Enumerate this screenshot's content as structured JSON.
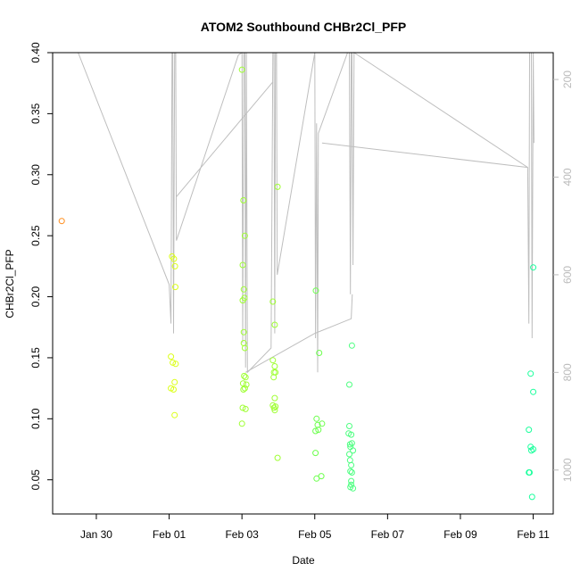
{
  "chart_data": {
    "type": "scatter",
    "title": "ATOM2 Southbound CHBr2Cl_PFP",
    "xlabel": "Date",
    "ylabel": "CHBr2Cl_PFP",
    "xlim": [
      -1.2,
      12.55
    ],
    "ylim": [
      0.022,
      0.4
    ],
    "yticks": [
      0.05,
      0.1,
      0.15,
      0.2,
      0.25,
      0.3,
      0.35,
      0.4
    ],
    "ytick_labels": [
      "0.05",
      "0.10",
      "0.15",
      "0.20",
      "0.25",
      "0.30",
      "0.35",
      "0.40"
    ],
    "xticks": [
      0,
      2,
      4,
      6,
      8,
      10,
      12
    ],
    "xtick_labels": [
      "Jan 30",
      "Feb 01",
      "Feb 03",
      "Feb 05",
      "Feb 07",
      "Feb 09",
      "Feb 11"
    ],
    "y2lim": [
      1090,
      145
    ],
    "y2ticks": [
      200,
      400,
      600,
      800,
      1000
    ],
    "y2tick_labels": [
      "200",
      "400",
      "600",
      "800",
      "1000"
    ],
    "altitude_color": "#bebebe",
    "points": [
      {
        "x": -0.95,
        "y": 0.262,
        "color": "#ff8c1a"
      },
      {
        "x": 2.05,
        "y": 0.151,
        "color": "#dcff1a"
      },
      {
        "x": 2.1,
        "y": 0.146,
        "color": "#dcff1a"
      },
      {
        "x": 2.18,
        "y": 0.145,
        "color": "#dcff1a"
      },
      {
        "x": 2.05,
        "y": 0.125,
        "color": "#dcff1a"
      },
      {
        "x": 2.12,
        "y": 0.124,
        "color": "#dcff1a"
      },
      {
        "x": 2.15,
        "y": 0.13,
        "color": "#dcff1a"
      },
      {
        "x": 2.15,
        "y": 0.103,
        "color": "#dcff1a"
      },
      {
        "x": 2.08,
        "y": 0.233,
        "color": "#dcff1a"
      },
      {
        "x": 2.13,
        "y": 0.231,
        "color": "#dcff1a"
      },
      {
        "x": 2.16,
        "y": 0.225,
        "color": "#dcff1a"
      },
      {
        "x": 2.17,
        "y": 0.208,
        "color": "#dcff1a"
      },
      {
        "x": 4.0,
        "y": 0.386,
        "color": "#9fff33"
      },
      {
        "x": 4.04,
        "y": 0.279,
        "color": "#9fff33"
      },
      {
        "x": 4.08,
        "y": 0.25,
        "color": "#9fff33"
      },
      {
        "x": 4.02,
        "y": 0.226,
        "color": "#9fff33"
      },
      {
        "x": 4.05,
        "y": 0.206,
        "color": "#9fff33"
      },
      {
        "x": 4.02,
        "y": 0.197,
        "color": "#9fff33"
      },
      {
        "x": 4.07,
        "y": 0.199,
        "color": "#9fff33"
      },
      {
        "x": 4.05,
        "y": 0.171,
        "color": "#9fff33"
      },
      {
        "x": 4.05,
        "y": 0.162,
        "color": "#9fff33"
      },
      {
        "x": 4.08,
        "y": 0.158,
        "color": "#9fff33"
      },
      {
        "x": 4.06,
        "y": 0.135,
        "color": "#9fff33"
      },
      {
        "x": 4.1,
        "y": 0.134,
        "color": "#9fff33"
      },
      {
        "x": 4.03,
        "y": 0.129,
        "color": "#9fff33"
      },
      {
        "x": 4.12,
        "y": 0.128,
        "color": "#9fff33"
      },
      {
        "x": 4.04,
        "y": 0.124,
        "color": "#9fff33"
      },
      {
        "x": 4.08,
        "y": 0.125,
        "color": "#9fff33"
      },
      {
        "x": 4.02,
        "y": 0.109,
        "color": "#9fff33"
      },
      {
        "x": 4.1,
        "y": 0.108,
        "color": "#9fff33"
      },
      {
        "x": 4.0,
        "y": 0.096,
        "color": "#9fff33"
      },
      {
        "x": 4.85,
        "y": 0.196,
        "color": "#9fff33"
      },
      {
        "x": 4.9,
        "y": 0.177,
        "color": "#9fff33"
      },
      {
        "x": 4.98,
        "y": 0.29,
        "color": "#9fff33"
      },
      {
        "x": 4.85,
        "y": 0.148,
        "color": "#9fff33"
      },
      {
        "x": 4.9,
        "y": 0.143,
        "color": "#9fff33"
      },
      {
        "x": 4.88,
        "y": 0.138,
        "color": "#9fff33"
      },
      {
        "x": 4.92,
        "y": 0.138,
        "color": "#9fff33"
      },
      {
        "x": 4.87,
        "y": 0.134,
        "color": "#9fff33"
      },
      {
        "x": 4.9,
        "y": 0.117,
        "color": "#9fff33"
      },
      {
        "x": 4.85,
        "y": 0.111,
        "color": "#9fff33"
      },
      {
        "x": 4.88,
        "y": 0.109,
        "color": "#9fff33"
      },
      {
        "x": 4.92,
        "y": 0.11,
        "color": "#9fff33"
      },
      {
        "x": 4.9,
        "y": 0.107,
        "color": "#9fff33"
      },
      {
        "x": 4.98,
        "y": 0.068,
        "color": "#9fff33"
      },
      {
        "x": 6.03,
        "y": 0.205,
        "color": "#6cff4d"
      },
      {
        "x": 6.12,
        "y": 0.154,
        "color": "#6cff4d"
      },
      {
        "x": 6.05,
        "y": 0.1,
        "color": "#6cff4d"
      },
      {
        "x": 6.08,
        "y": 0.095,
        "color": "#6cff4d"
      },
      {
        "x": 6.2,
        "y": 0.096,
        "color": "#6cff4d"
      },
      {
        "x": 6.1,
        "y": 0.091,
        "color": "#6cff4d"
      },
      {
        "x": 6.02,
        "y": 0.09,
        "color": "#6cff4d"
      },
      {
        "x": 6.02,
        "y": 0.072,
        "color": "#6cff4d"
      },
      {
        "x": 6.05,
        "y": 0.051,
        "color": "#6cff4d"
      },
      {
        "x": 6.18,
        "y": 0.053,
        "color": "#6cff4d"
      },
      {
        "x": 6.95,
        "y": 0.128,
        "color": "#4dff80"
      },
      {
        "x": 7.02,
        "y": 0.16,
        "color": "#4dff80"
      },
      {
        "x": 6.95,
        "y": 0.094,
        "color": "#4dff80"
      },
      {
        "x": 6.93,
        "y": 0.088,
        "color": "#4dff80"
      },
      {
        "x": 7.0,
        "y": 0.087,
        "color": "#4dff80"
      },
      {
        "x": 6.97,
        "y": 0.079,
        "color": "#4dff80"
      },
      {
        "x": 7.02,
        "y": 0.08,
        "color": "#4dff80"
      },
      {
        "x": 6.98,
        "y": 0.077,
        "color": "#4dff80"
      },
      {
        "x": 7.05,
        "y": 0.074,
        "color": "#4dff80"
      },
      {
        "x": 6.95,
        "y": 0.071,
        "color": "#4dff80"
      },
      {
        "x": 6.97,
        "y": 0.066,
        "color": "#4dff80"
      },
      {
        "x": 7.0,
        "y": 0.062,
        "color": "#4dff80"
      },
      {
        "x": 6.98,
        "y": 0.057,
        "color": "#4dff80"
      },
      {
        "x": 7.02,
        "y": 0.056,
        "color": "#4dff80"
      },
      {
        "x": 7.0,
        "y": 0.049,
        "color": "#4dff80"
      },
      {
        "x": 6.98,
        "y": 0.044,
        "color": "#4dff80"
      },
      {
        "x": 7.05,
        "y": 0.043,
        "color": "#4dff80"
      },
      {
        "x": 7.0,
        "y": 0.046,
        "color": "#4dff80"
      },
      {
        "x": 11.93,
        "y": 0.137,
        "color": "#1aff9c"
      },
      {
        "x": 12.0,
        "y": 0.224,
        "color": "#1aff9c"
      },
      {
        "x": 12.0,
        "y": 0.122,
        "color": "#1aff9c"
      },
      {
        "x": 11.88,
        "y": 0.091,
        "color": "#1aff9c"
      },
      {
        "x": 11.93,
        "y": 0.077,
        "color": "#1aff9c"
      },
      {
        "x": 11.95,
        "y": 0.074,
        "color": "#1aff9c"
      },
      {
        "x": 12.0,
        "y": 0.075,
        "color": "#1aff9c"
      },
      {
        "x": 11.88,
        "y": 0.056,
        "color": "#1aff9c"
      },
      {
        "x": 11.9,
        "y": 0.056,
        "color": "#1aff9c"
      },
      {
        "x": 11.97,
        "y": 0.036,
        "color": "#1aff9c"
      }
    ],
    "altitude_line": [
      [
        -0.5,
        145
      ],
      [
        2.0,
        620
      ],
      [
        2.05,
        700
      ],
      [
        2.08,
        145
      ],
      [
        2.1,
        145
      ],
      [
        2.12,
        720
      ],
      [
        2.15,
        145
      ],
      [
        2.18,
        145
      ],
      [
        2.2,
        530
      ],
      [
        3.9,
        150
      ],
      [
        4.0,
        145
      ],
      [
        4.02,
        740
      ],
      [
        4.05,
        145
      ],
      [
        4.08,
        145
      ],
      [
        4.1,
        790
      ],
      [
        4.12,
        145
      ],
      [
        4.15,
        800
      ],
      [
        4.8,
        750
      ],
      [
        4.85,
        145
      ],
      [
        4.88,
        145
      ],
      [
        4.9,
        720
      ],
      [
        4.92,
        145
      ],
      [
        4.95,
        145
      ],
      [
        4.97,
        600
      ],
      [
        6.0,
        145
      ],
      [
        6.02,
        730
      ],
      [
        6.05,
        290
      ],
      [
        6.08,
        800
      ],
      [
        6.1,
        310
      ],
      [
        6.9,
        145
      ],
      [
        6.95,
        145
      ],
      [
        6.98,
        640
      ],
      [
        7.0,
        145
      ],
      [
        7.02,
        145
      ],
      [
        7.05,
        580
      ],
      [
        7.08,
        145
      ],
      [
        11.85,
        380
      ],
      [
        11.88,
        700
      ],
      [
        11.9,
        145
      ],
      [
        11.95,
        145
      ],
      [
        11.97,
        730
      ],
      [
        12.0,
        145
      ],
      [
        12.02,
        330
      ]
    ],
    "altitude_line_2": [
      [
        4.1,
        800
      ],
      [
        6.0,
        720
      ],
      [
        7.0,
        690
      ],
      [
        7.03,
        640
      ]
    ],
    "altitude_line_3": [
      [
        2.2,
        440
      ],
      [
        4.85,
        205
      ]
    ],
    "altitude_line_4": [
      [
        6.2,
        330
      ],
      [
        11.85,
        380
      ]
    ]
  }
}
